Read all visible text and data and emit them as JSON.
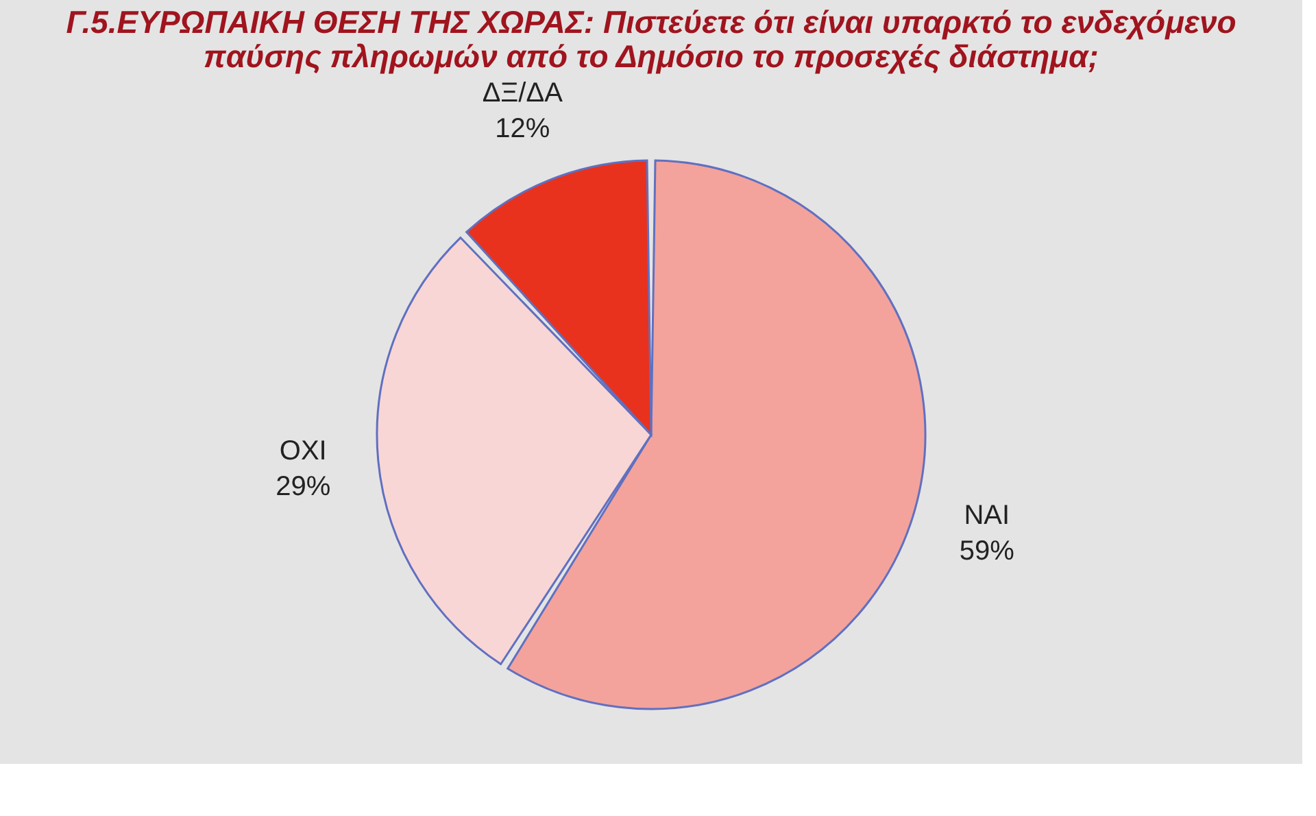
{
  "chart_data": {
    "type": "pie",
    "title": [
      "Γ.5.ΕΥΡΩΠΑΙΚΗ ΘΕΣΗ ΤΗΣ ΧΩΡΑΣ: Πιστεύετε ότι είναι υπαρκτό το ενδεχόμενο",
      "παύσης πληρωμών από το Δημόσιο  το προσεχές διάστημα;"
    ],
    "categories": [
      "ΝΑΙ",
      "ΟΧΙ",
      "ΔΞ/ΔΑ"
    ],
    "values": [
      59,
      29,
      12
    ],
    "value_labels": [
      "59%",
      "29%",
      "12%"
    ],
    "colors": [
      "#f3a39c",
      "#f8d6d6",
      "#e8321e"
    ],
    "legend": false
  }
}
